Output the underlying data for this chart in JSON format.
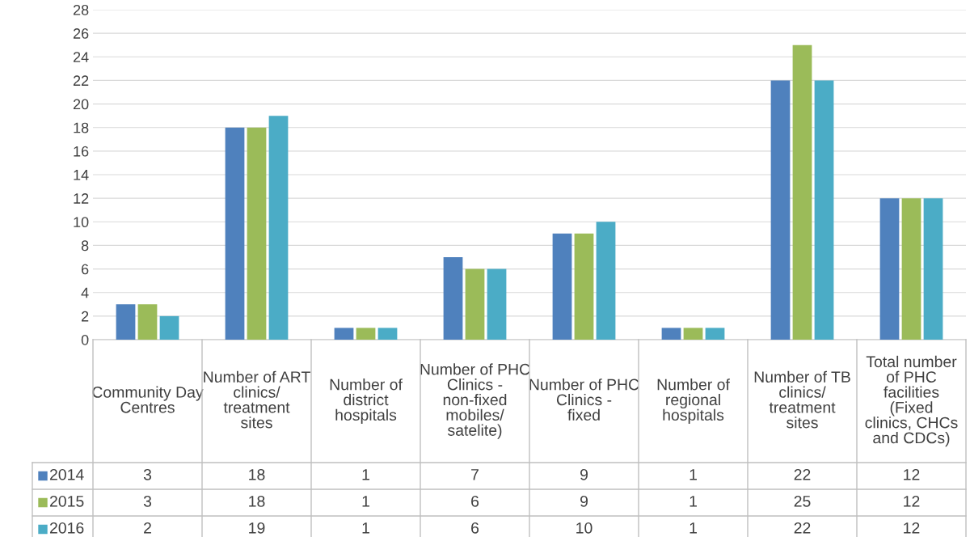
{
  "chart_data": {
    "type": "bar",
    "categories": [
      "Community Day Centres",
      "Number of ART clinics/ treatment sites",
      "Number of district hospitals",
      "Number of PHC Clinics - non-fixed mobiles/ satelite)",
      "Number of PHC Clinics - fixed",
      "Number of regional hospitals",
      "Number of TB clinics/ treatment sites",
      "Total number of PHC facilities (Fixed clinics, CHCs and CDCs)"
    ],
    "series": [
      {
        "name": "2014",
        "color": "#4f81bd",
        "values": [
          3,
          18,
          1,
          7,
          9,
          1,
          22,
          12
        ]
      },
      {
        "name": "2015",
        "color": "#9bbb59",
        "values": [
          3,
          18,
          1,
          6,
          9,
          1,
          25,
          12
        ]
      },
      {
        "name": "2016",
        "color": "#4bacc6",
        "values": [
          2,
          19,
          1,
          6,
          10,
          1,
          22,
          12
        ]
      }
    ],
    "ylim": [
      0,
      28
    ],
    "yticks": [
      0,
      2,
      4,
      6,
      8,
      10,
      12,
      14,
      16,
      18,
      20,
      22,
      24,
      26,
      28
    ],
    "grid": "y",
    "data_labels": true,
    "legend": "bottom left"
  }
}
